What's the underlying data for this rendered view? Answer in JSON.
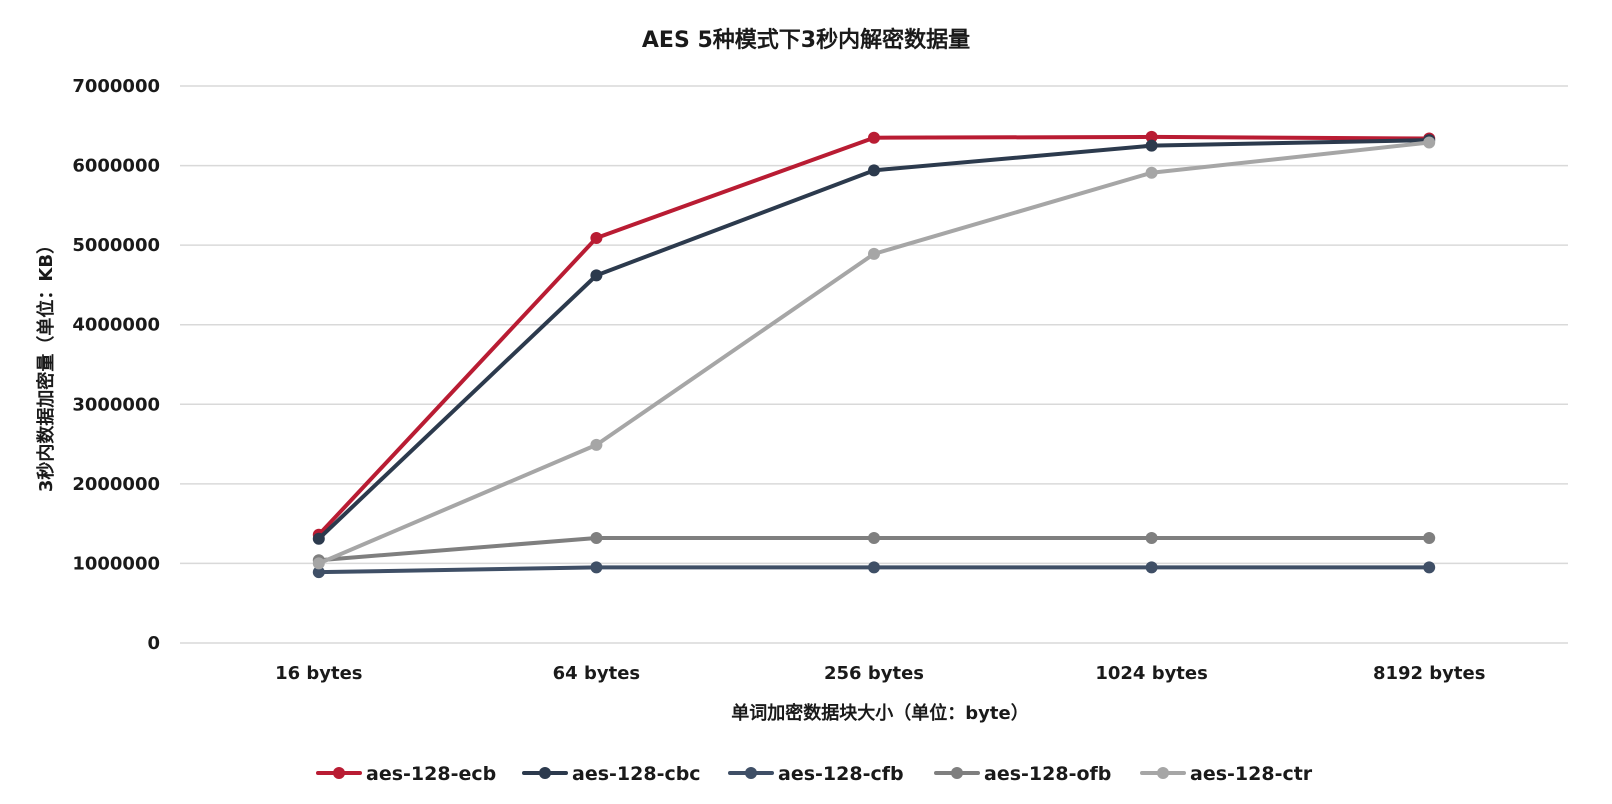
{
  "chart_data": {
    "type": "line",
    "title": "AES 5种模式下3秒内解密数据量",
    "xlabel": "单词加密数据块大小（单位：byte）",
    "ylabel": "3秒内数据加密量（单位：KB）",
    "categories": [
      "16 bytes",
      "64 bytes",
      "256 bytes",
      "1024 bytes",
      "8192 bytes"
    ],
    "ylim": [
      0,
      7000000
    ],
    "yticks": [
      0,
      1000000,
      2000000,
      3000000,
      4000000,
      5000000,
      6000000,
      7000000
    ],
    "ytick_labels": [
      "0",
      "1000000",
      "2000000",
      "3000000",
      "4000000",
      "5000000",
      "6000000",
      "7000000"
    ],
    "grid": true,
    "legend_position": "bottom",
    "series": [
      {
        "name": "aes-128-ecb",
        "color": "#b91c33",
        "values": [
          1360000,
          5090000,
          6350000,
          6360000,
          6340000
        ]
      },
      {
        "name": "aes-128-cbc",
        "color": "#2c3a4d",
        "values": [
          1310000,
          4620000,
          5940000,
          6250000,
          6320000
        ]
      },
      {
        "name": "aes-128-cfb",
        "color": "#3f4f66",
        "values": [
          890000,
          950000,
          950000,
          950000,
          950000
        ]
      },
      {
        "name": "aes-128-ofb",
        "color": "#7f7f7f",
        "values": [
          1040000,
          1320000,
          1320000,
          1320000,
          1320000
        ]
      },
      {
        "name": "aes-128-ctr",
        "color": "#a6a6a6",
        "values": [
          1000000,
          2490000,
          4890000,
          5910000,
          6290000
        ]
      }
    ]
  }
}
